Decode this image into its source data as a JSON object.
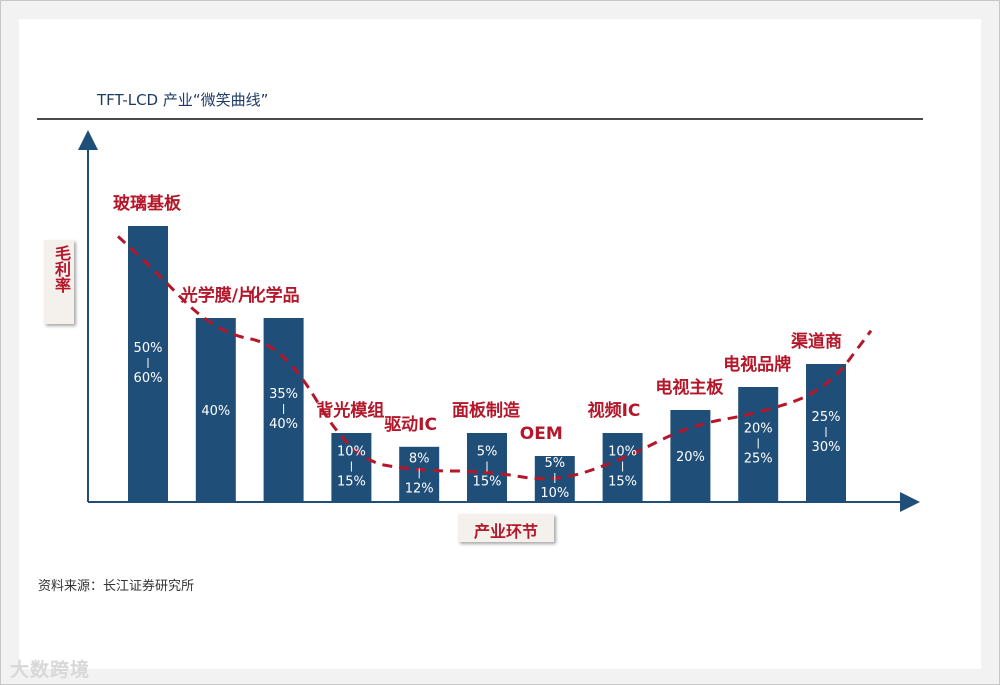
{
  "title": "TFT-LCD 产业“微笑曲线”",
  "source": "资料来源：长江证券研究所",
  "watermark": "大数跨境",
  "chart_data": {
    "type": "bar",
    "ylabel": "毛利率",
    "xlabel": "产业环节",
    "categories": [
      "玻璃基板",
      "光学膜/片",
      "化学品",
      "背光模组",
      "驱动IC",
      "面板制造",
      "OEM",
      "视频IC",
      "电视主板",
      "电视品牌",
      "渠道商"
    ],
    "ranges": [
      [
        50,
        60
      ],
      [
        40,
        40
      ],
      [
        35,
        40
      ],
      [
        10,
        15
      ],
      [
        8,
        12
      ],
      [
        5,
        15
      ],
      [
        5,
        10
      ],
      [
        10,
        15
      ],
      [
        20,
        20
      ],
      [
        20,
        25
      ],
      [
        25,
        30
      ]
    ],
    "value_labels": [
      [
        "50%",
        "60%"
      ],
      [
        "40%"
      ],
      [
        "35%",
        "40%"
      ],
      [
        "10%",
        "15%"
      ],
      [
        "8%",
        "12%"
      ],
      [
        "5%",
        "15%"
      ],
      [
        "5%",
        "10%"
      ],
      [
        "10%",
        "15%"
      ],
      [
        "20%"
      ],
      [
        "20%",
        "25%"
      ],
      [
        "25%",
        "30%"
      ]
    ],
    "series": [
      {
        "values": [
          55,
          40,
          37.5,
          12.5,
          10,
          10,
          7.5,
          12.5,
          20,
          22.5,
          27.5
        ]
      }
    ],
    "trend_line": "smile curve (dashed)",
    "colors": {
      "bar": "#1f4e79",
      "label": "#b5172a",
      "trend": "#b5172a",
      "axis": "#1f4e79"
    },
    "grid": false,
    "legend": "none"
  }
}
